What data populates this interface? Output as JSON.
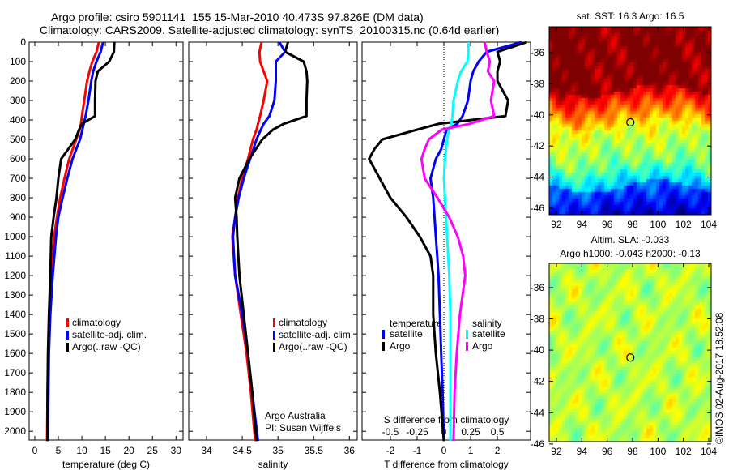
{
  "header": {
    "title_line1": "Argo profile: csiro 5901141_155 15-Mar-2010 40.473S 97.826E (DM data)",
    "title_line2": "Climatology: CARS2009. Satellite-adjusted climatology: synTS_20100315.nc (0.64d earlier)"
  },
  "footer": {
    "copyright": "©IMOS 02-Aug-2017 18:52:08",
    "note_line1": "Argo Australia",
    "note_line2": "PI: Susan Wijffels"
  },
  "colors": {
    "climatology": "#ff0000",
    "satellite": "#0000ff",
    "argo": "#000000",
    "sal_satellite": "#00ffff",
    "sal_argo": "#ff00ff"
  },
  "chart_data": [
    {
      "type": "line",
      "id": "temperature",
      "xlabel": "temperature (deg C)",
      "ylabel": "depth",
      "xlim": [
        -1.2,
        31.5
      ],
      "ylim": [
        2045,
        0
      ],
      "xticks": [
        "0",
        "5",
        "10",
        "15",
        "20",
        "25",
        "30"
      ],
      "yticks": [
        "0",
        "100",
        "200",
        "300",
        "400",
        "500",
        "600",
        "700",
        "800",
        "900",
        "1000",
        "1100",
        "1200",
        "1300",
        "1400",
        "1500",
        "1600",
        "1700",
        "1800",
        "1900",
        "2000"
      ],
      "legend": [
        "climatology",
        "satellite-adj. clim.",
        "Argo(..raw -QC)"
      ],
      "depth": [
        0,
        50,
        100,
        150,
        200,
        300,
        380,
        420,
        450,
        500,
        600,
        700,
        800,
        900,
        1000,
        1200,
        1400,
        1600,
        1800,
        2050
      ],
      "series": [
        {
          "name": "climatology",
          "color": "#ff0000",
          "values": [
            13.6,
            13.1,
            12.2,
            11.6,
            11.1,
            10.5,
            10.0,
            9.8,
            9.5,
            8.8,
            7.3,
            6.3,
            5.4,
            4.7,
            4.1,
            3.6,
            3.1,
            2.9,
            2.7,
            2.6
          ]
        },
        {
          "name": "satellite-adj. clim.",
          "color": "#0000ff",
          "values": [
            14.5,
            14.0,
            13.1,
            12.4,
            12.0,
            11.4,
            10.8,
            10.4,
            10.1,
            9.6,
            8.0,
            6.9,
            5.9,
            5.0,
            4.5,
            3.8,
            3.3,
            3.0,
            2.9,
            2.7
          ]
        },
        {
          "name": "Argo(..raw -QC)",
          "color": "#000000",
          "values": [
            16.9,
            16.8,
            15.8,
            13.4,
            12.9,
            12.8,
            12.8,
            10.0,
            9.4,
            8.6,
            5.6,
            5.0,
            4.6,
            4.0,
            3.5,
            3.3,
            3.0,
            2.8,
            2.7,
            2.7
          ]
        }
      ]
    },
    {
      "type": "line",
      "id": "salinity",
      "xlabel": "salinity",
      "ylabel": "depth",
      "xlim": [
        33.75,
        36.11
      ],
      "ylim": [
        2045,
        0
      ],
      "xticks": [
        "34",
        "34.5",
        "35",
        "35.5",
        "36"
      ],
      "legend": [
        "climatology",
        "satellite-adj. clim.",
        "Argo(..raw -QC)"
      ],
      "depth": [
        0,
        50,
        100,
        150,
        200,
        300,
        380,
        420,
        450,
        500,
        600,
        700,
        800,
        900,
        1000,
        1200,
        1400,
        1600,
        1800,
        2050
      ],
      "series": [
        {
          "name": "climatology",
          "color": "#ff0000",
          "values": [
            34.77,
            34.74,
            34.75,
            34.8,
            34.85,
            34.8,
            34.75,
            34.72,
            34.7,
            34.65,
            34.58,
            34.5,
            34.44,
            34.4,
            34.36,
            34.4,
            34.48,
            34.56,
            34.62,
            34.68
          ]
        },
        {
          "name": "satellite-adj. clim.",
          "color": "#0000ff",
          "values": [
            35.02,
            35.1,
            34.97,
            34.97,
            34.97,
            34.95,
            34.88,
            34.8,
            34.76,
            34.7,
            34.61,
            34.52,
            34.45,
            34.4,
            34.37,
            34.4,
            34.5,
            34.58,
            34.64,
            34.72
          ]
        },
        {
          "name": "Argo(..raw -QC)",
          "color": "#000000",
          "values": [
            35.14,
            35.1,
            35.36,
            35.4,
            35.41,
            35.4,
            35.4,
            35.08,
            34.93,
            34.78,
            34.6,
            34.46,
            34.4,
            34.42,
            34.43,
            34.46,
            34.52,
            34.58,
            34.64,
            34.7
          ]
        }
      ]
    },
    {
      "type": "line",
      "id": "difference",
      "xlabel": "T difference from climatology",
      "xlabel2": "S difference from climatology",
      "ylabel": "depth",
      "xlim": [
        -3.06,
        3.24
      ],
      "s_per_t": 0.25,
      "ylim": [
        2045,
        0
      ],
      "xticks": [
        "-2",
        "-1",
        "0",
        "1",
        "2"
      ],
      "sticks": [
        "-0.5",
        "-0.25",
        "0",
        "0.25",
        "0.5"
      ],
      "legend_temperature_title": "temperature",
      "legend_salinity_title": "salinity",
      "legend_temperature": [
        "satellite",
        "Argo"
      ],
      "legend_salinity": [
        "satellite",
        "Argo"
      ],
      "depth": [
        0,
        50,
        100,
        150,
        200,
        300,
        380,
        420,
        450,
        500,
        550,
        600,
        700,
        800,
        900,
        1000,
        1100,
        1200,
        1400,
        1600,
        1800,
        2050
      ],
      "series": [
        {
          "name": "T satellite",
          "var": "T",
          "color": "#0000ff",
          "values": [
            2.9,
            1.6,
            1.3,
            1.1,
            1.0,
            0.9,
            0.7,
            0.5,
            0.1,
            0.0,
            -0.1,
            -0.3,
            -0.5,
            -0.4,
            -0.35,
            -0.3,
            -0.25,
            -0.2,
            -0.15,
            -0.1,
            -0.05,
            0.0
          ]
        },
        {
          "name": "T Argo",
          "var": "T",
          "color": "#000000",
          "values": [
            3.1,
            2.0,
            2.1,
            2.0,
            2.0,
            2.4,
            2.3,
            -0.2,
            -1.0,
            -2.3,
            -2.6,
            -2.8,
            -2.4,
            -2.0,
            -1.4,
            -0.9,
            -0.5,
            -0.4,
            -0.4,
            -0.3,
            -0.15,
            0.0
          ]
        },
        {
          "name": "S satellite",
          "var": "S",
          "color": "#00ffff",
          "values": [
            0.23,
            0.23,
            0.22,
            0.16,
            0.13,
            0.09,
            0.08,
            0.07,
            0.05,
            0.03,
            0.02,
            0.01,
            0.0,
            0.01,
            0.02,
            0.03,
            0.04,
            0.05,
            0.06,
            0.06,
            0.06,
            0.06
          ]
        },
        {
          "name": "S Argo",
          "var": "S",
          "color": "#ff00ff",
          "values": [
            0.38,
            0.4,
            0.43,
            0.41,
            0.47,
            0.44,
            0.47,
            0.24,
            -0.02,
            -0.14,
            -0.18,
            -0.21,
            -0.18,
            -0.06,
            0.05,
            0.13,
            0.18,
            0.2,
            0.15,
            0.12,
            0.1,
            0.09
          ]
        }
      ]
    },
    {
      "type": "heatmap",
      "id": "sst_map",
      "title": "sat. SST: 16.3 Argo: 16.5",
      "xlim": [
        91.43,
        104.19
      ],
      "ylim": [
        -46.42,
        -34.33
      ],
      "xticks": [
        "92",
        "94",
        "96",
        "98",
        "100",
        "102",
        "104"
      ],
      "yticks": [
        "-36",
        "-38",
        "-40",
        "-42",
        "-44",
        "-46"
      ],
      "argo_position": {
        "lon": 97.826,
        "lat": -40.473
      }
    },
    {
      "type": "heatmap",
      "id": "sla_map",
      "title": "Altim. SLA: -0.033",
      "subtitle": "Argo h1000: -0.043 h2000: -0.13",
      "xlim": [
        91.43,
        104.19
      ],
      "ylim": [
        -45.85,
        -34.45
      ],
      "xticks": [
        "92",
        "94",
        "96",
        "98",
        "100",
        "102",
        "104"
      ],
      "yticks": [
        "-36",
        "-38",
        "-40",
        "-42",
        "-44",
        "-46"
      ],
      "argo_position": {
        "lon": 97.826,
        "lat": -40.473
      }
    }
  ]
}
